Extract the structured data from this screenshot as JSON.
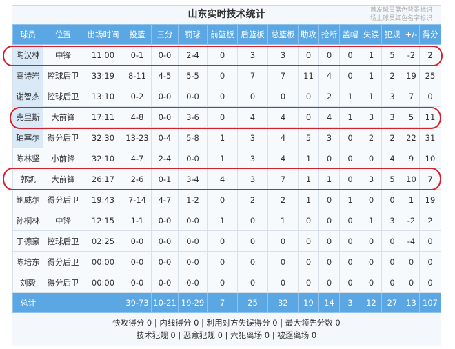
{
  "title": "山东实时技术统计",
  "legend_note": [
    "首发球员蓝色背景标识",
    "场上球员红色名字标识"
  ],
  "columns": [
    "球员",
    "位置",
    "出场时间",
    "投篮",
    "三分",
    "罚球",
    "前篮板",
    "后篮板",
    "总篮板",
    "助攻",
    "抢断",
    "盖帽",
    "失误",
    "犯规",
    "+/-",
    "得分"
  ],
  "rows": [
    {
      "starter": true,
      "highlighted": true,
      "cells": [
        "陶汉林",
        "中锋",
        "11:00",
        "0-1",
        "0-0",
        "2-4",
        "0",
        "3",
        "3",
        "0",
        "0",
        "0",
        "1",
        "5",
        "-2",
        "2"
      ]
    },
    {
      "starter": true,
      "highlighted": false,
      "cells": [
        "高诗岩",
        "控球后卫",
        "33:19",
        "8-11",
        "4-5",
        "5-5",
        "0",
        "7",
        "7",
        "11",
        "4",
        "0",
        "1",
        "2",
        "19",
        "25"
      ]
    },
    {
      "starter": true,
      "highlighted": false,
      "cells": [
        "谢智杰",
        "控球后卫",
        "13:10",
        "0-2",
        "0-0",
        "0-0",
        "0",
        "0",
        "0",
        "0",
        "2",
        "1",
        "1",
        "3",
        "7",
        "0"
      ]
    },
    {
      "starter": true,
      "highlighted": true,
      "cells": [
        "克里斯",
        "大前锋",
        "17:11",
        "4-8",
        "0-0",
        "3-6",
        "0",
        "4",
        "4",
        "0",
        "4",
        "1",
        "3",
        "3",
        "5",
        "11"
      ]
    },
    {
      "starter": true,
      "highlighted": false,
      "cells": [
        "珀塞尔",
        "得分后卫",
        "32:30",
        "13-23",
        "0-4",
        "5-8",
        "1",
        "3",
        "4",
        "5",
        "3",
        "0",
        "2",
        "2",
        "22",
        "31"
      ]
    },
    {
      "starter": false,
      "highlighted": false,
      "cells": [
        "陈林坚",
        "小前锋",
        "32:10",
        "4-7",
        "2-4",
        "0-0",
        "1",
        "3",
        "4",
        "1",
        "0",
        "0",
        "0",
        "4",
        "9",
        "10"
      ]
    },
    {
      "starter": false,
      "highlighted": true,
      "cells": [
        "郭凯",
        "大前锋",
        "26:17",
        "2-6",
        "0-1",
        "3-4",
        "4",
        "3",
        "7",
        "1",
        "1",
        "0",
        "3",
        "5",
        "10",
        "7"
      ]
    },
    {
      "starter": false,
      "highlighted": false,
      "cells": [
        "鲍威尔",
        "得分后卫",
        "19:43",
        "7-14",
        "4-7",
        "1-2",
        "0",
        "2",
        "2",
        "1",
        "0",
        "1",
        "0",
        "0",
        "1",
        "19"
      ]
    },
    {
      "starter": false,
      "highlighted": false,
      "cells": [
        "孙桐林",
        "中锋",
        "12:15",
        "1-1",
        "0-0",
        "0-0",
        "1",
        "0",
        "1",
        "0",
        "0",
        "0",
        "1",
        "3",
        "-2",
        "2"
      ]
    },
    {
      "starter": false,
      "highlighted": false,
      "cells": [
        "于德豪",
        "控球后卫",
        "02:25",
        "0-0",
        "0-0",
        "0-0",
        "0",
        "0",
        "0",
        "0",
        "0",
        "0",
        "0",
        "0",
        "-4",
        "0"
      ]
    },
    {
      "starter": false,
      "highlighted": false,
      "cells": [
        "陈培东",
        "得分后卫",
        "00:00",
        "0-0",
        "0-0",
        "0-0",
        "0",
        "0",
        "0",
        "0",
        "0",
        "0",
        "0",
        "0",
        "0",
        "0"
      ]
    },
    {
      "starter": false,
      "highlighted": false,
      "cells": [
        "刘毅",
        "得分后卫",
        "00:00",
        "0-0",
        "0-0",
        "0-0",
        "0",
        "0",
        "0",
        "0",
        "0",
        "0",
        "0",
        "0",
        "0",
        "0"
      ]
    }
  ],
  "total": [
    "总计",
    "",
    "",
    "39-73",
    "10-21",
    "19-29",
    "7",
    "25",
    "32",
    "19",
    "14",
    "3",
    "12",
    "27",
    "13",
    "107"
  ],
  "footer": [
    "快攻得分 0 | 内线得分 0 | 利用对方失误得分 0 | 最大领先分数 0",
    "技术犯规 0 | 恶意犯规 0 | 六犯离场 0 | 被逐离场 0"
  ],
  "colors": {
    "header": "#5aa7e4",
    "starter": "#d9e9f7",
    "highlight": "#d4202a"
  }
}
